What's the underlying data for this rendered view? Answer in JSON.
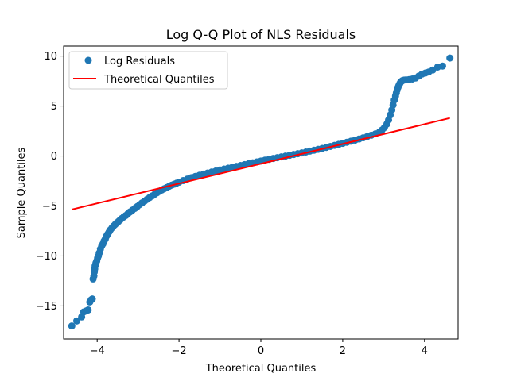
{
  "chart_data": {
    "type": "scatter",
    "title": "Log Q-Q Plot of NLS Residuals",
    "xlabel": "Theoretical Quantiles",
    "ylabel": "Sample Quantiles",
    "xlim": [
      -4.82,
      4.82
    ],
    "ylim": [
      -18.3,
      11.0
    ],
    "xticks": [
      -4,
      -2,
      0,
      2,
      4
    ],
    "yticks": [
      -15,
      -10,
      -5,
      0,
      5,
      10
    ],
    "grid": false,
    "legend_placement": "top-left",
    "series": [
      {
        "name": "Log Residuals",
        "kind": "points",
        "color": "#1f77b4",
        "x": [
          -4.62,
          -4.5,
          -4.38,
          -4.33,
          -4.27,
          -4.22,
          -4.18,
          -4.15,
          -4.12,
          -4.1,
          -4.08,
          -4.07,
          -4.06,
          -4.05,
          -4.04,
          -4.03,
          -4.01,
          -3.99,
          -3.97,
          -3.95,
          -3.92,
          -3.89,
          -3.86,
          -3.83,
          -3.8,
          -3.77,
          -3.74,
          -3.71,
          -3.68,
          -3.64,
          -3.6,
          -3.56,
          -3.52,
          -3.48,
          -3.44,
          -3.4,
          -3.35,
          -3.3,
          -3.25,
          -3.2,
          -3.14,
          -3.08,
          -3.02,
          -2.96,
          -2.9,
          -2.84,
          -2.78,
          -2.72,
          -2.66,
          -2.6,
          -2.54,
          -2.48,
          -2.42,
          -2.36,
          -2.3,
          -2.24,
          -2.18,
          -2.12,
          -2.06,
          -2.0,
          -1.9,
          -1.8,
          -1.7,
          -1.6,
          -1.5,
          -1.4,
          -1.3,
          -1.2,
          -1.1,
          -1.0,
          -0.9,
          -0.8,
          -0.7,
          -0.6,
          -0.5,
          -0.4,
          -0.3,
          -0.2,
          -0.1,
          0.0,
          0.1,
          0.2,
          0.3,
          0.4,
          0.5,
          0.6,
          0.7,
          0.8,
          0.9,
          1.0,
          1.1,
          1.2,
          1.3,
          1.4,
          1.5,
          1.6,
          1.7,
          1.8,
          1.9,
          2.0,
          2.1,
          2.2,
          2.3,
          2.4,
          2.5,
          2.6,
          2.7,
          2.8,
          2.9,
          2.96,
          3.02,
          3.08,
          3.12,
          3.16,
          3.2,
          3.23,
          3.26,
          3.29,
          3.31,
          3.33,
          3.35,
          3.37,
          3.39,
          3.41,
          3.43,
          3.46,
          3.5,
          3.55,
          3.62,
          3.7,
          3.78,
          3.86,
          3.94,
          4.02,
          4.1,
          4.2,
          4.32,
          4.44,
          4.62
        ],
        "y": [
          -17.0,
          -16.5,
          -16.1,
          -15.6,
          -15.5,
          -15.4,
          -14.6,
          -14.4,
          -14.3,
          -12.3,
          -12.0,
          -11.6,
          -11.3,
          -11.0,
          -10.9,
          -10.7,
          -10.5,
          -10.2,
          -10.0,
          -9.7,
          -9.3,
          -9.0,
          -8.8,
          -8.5,
          -8.3,
          -8.0,
          -7.8,
          -7.6,
          -7.4,
          -7.2,
          -7.0,
          -6.85,
          -6.7,
          -6.55,
          -6.4,
          -6.25,
          -6.1,
          -5.95,
          -5.78,
          -5.6,
          -5.42,
          -5.24,
          -5.05,
          -4.86,
          -4.68,
          -4.5,
          -4.33,
          -4.16,
          -4.0,
          -3.84,
          -3.69,
          -3.54,
          -3.4,
          -3.27,
          -3.15,
          -3.03,
          -2.92,
          -2.82,
          -2.72,
          -2.62,
          -2.46,
          -2.31,
          -2.17,
          -2.04,
          -1.92,
          -1.81,
          -1.7,
          -1.6,
          -1.5,
          -1.4,
          -1.31,
          -1.22,
          -1.13,
          -1.04,
          -0.95,
          -0.86,
          -0.77,
          -0.68,
          -0.59,
          -0.5,
          -0.41,
          -0.33,
          -0.25,
          -0.17,
          -0.09,
          -0.01,
          0.07,
          0.15,
          0.23,
          0.31,
          0.4,
          0.49,
          0.58,
          0.67,
          0.76,
          0.86,
          0.96,
          1.06,
          1.16,
          1.26,
          1.37,
          1.48,
          1.59,
          1.7,
          1.82,
          1.95,
          2.08,
          2.22,
          2.4,
          2.6,
          2.85,
          3.2,
          3.6,
          4.1,
          4.6,
          5.1,
          5.6,
          6.0,
          6.3,
          6.6,
          6.85,
          7.05,
          7.2,
          7.35,
          7.45,
          7.55,
          7.6,
          7.62,
          7.65,
          7.7,
          7.8,
          8.0,
          8.2,
          8.3,
          8.4,
          8.6,
          8.9,
          9.0,
          9.8
        ]
      },
      {
        "name": "Theoretical Quantiles",
        "kind": "line",
        "color": "#ff0000",
        "x": [
          -4.62,
          4.62
        ],
        "y": [
          -5.35,
          3.8
        ]
      }
    ]
  }
}
